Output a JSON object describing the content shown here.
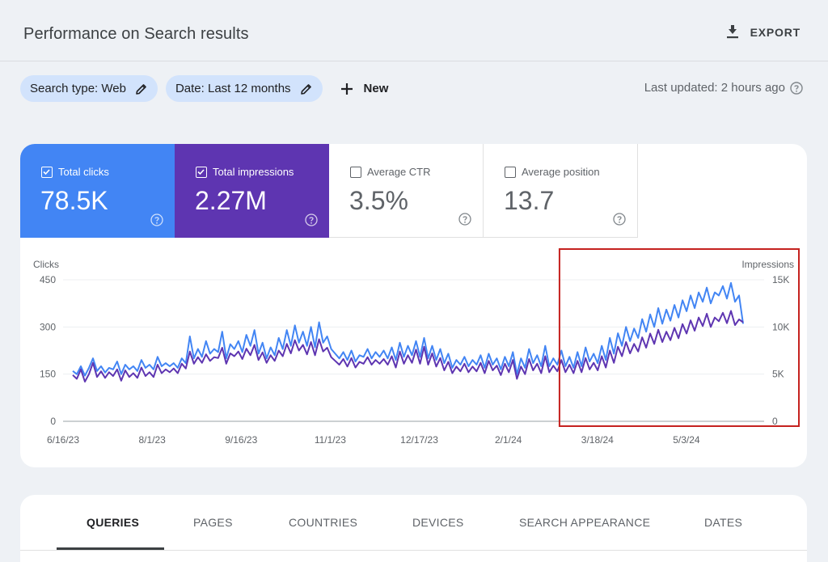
{
  "header": {
    "title": "Performance on Search results",
    "export_label": "EXPORT"
  },
  "filters": {
    "search_type": "Search type: Web",
    "date": "Date: Last 12 months",
    "new_label": "New",
    "last_updated": "Last updated: 2 hours ago"
  },
  "metrics": [
    {
      "label": "Total clicks",
      "value": "78.5K",
      "checked": true
    },
    {
      "label": "Total impressions",
      "value": "2.27M",
      "checked": true
    },
    {
      "label": "Average CTR",
      "value": "3.5%",
      "checked": false
    },
    {
      "label": "Average position",
      "value": "13.7",
      "checked": false
    }
  ],
  "colors": {
    "clicks": "#4285f4",
    "impressions": "#5e35b1",
    "highlight": "#c5221f"
  },
  "chart_data": {
    "type": "line",
    "left_axis_label": "Clicks",
    "right_axis_label": "Impressions",
    "left_ticks": [
      "450",
      "300",
      "150",
      "0"
    ],
    "right_ticks": [
      "15K",
      "10K",
      "5K",
      "0"
    ],
    "left_range": [
      0,
      450
    ],
    "right_range": [
      0,
      15000
    ],
    "x_tick_labels": [
      "6/16/23",
      "8/1/23",
      "9/16/23",
      "11/1/23",
      "12/17/23",
      "2/1/24",
      "3/18/24",
      "5/3/24"
    ],
    "x_range": [
      "2023-06-16",
      "2024-06-20"
    ],
    "series": [
      {
        "name": "Clicks",
        "axis": "left",
        "color": "#4285f4",
        "values": [
          160,
          150,
          175,
          145,
          170,
          200,
          160,
          175,
          155,
          170,
          165,
          190,
          150,
          180,
          165,
          175,
          160,
          195,
          170,
          180,
          165,
          205,
          175,
          185,
          175,
          185,
          170,
          200,
          185,
          270,
          200,
          230,
          205,
          255,
          215,
          230,
          220,
          285,
          200,
          245,
          230,
          255,
          220,
          275,
          240,
          290,
          215,
          250,
          200,
          235,
          210,
          265,
          230,
          290,
          240,
          305,
          250,
          285,
          240,
          300,
          235,
          315,
          250,
          270,
          230,
          215,
          200,
          220,
          195,
          225,
          190,
          210,
          205,
          230,
          200,
          220,
          205,
          225,
          200,
          235,
          195,
          250,
          205,
          240,
          210,
          255,
          205,
          265,
          200,
          240,
          195,
          230,
          185,
          215,
          170,
          195,
          180,
          205,
          175,
          195,
          180,
          210,
          170,
          215,
          180,
          200,
          165,
          205,
          175,
          220,
          150,
          200,
          170,
          230,
          185,
          210,
          175,
          240,
          175,
          200,
          180,
          225,
          175,
          205,
          170,
          220,
          175,
          235,
          190,
          215,
          185,
          240,
          195,
          265,
          215,
          280,
          240,
          300,
          255,
          295,
          265,
          325,
          285,
          340,
          300,
          360,
          310,
          355,
          320,
          370,
          330,
          385,
          350,
          400,
          360,
          410,
          380,
          425,
          375,
          410,
          400,
          430,
          390,
          440,
          380,
          400,
          310
        ]
      },
      {
        "name": "Impressions",
        "axis": "right",
        "color": "#5e35b1",
        "values": [
          4900,
          4500,
          5500,
          4200,
          5000,
          6200,
          4700,
          5300,
          4600,
          5200,
          4800,
          5500,
          4300,
          5400,
          4700,
          5100,
          4600,
          5700,
          4800,
          5200,
          4700,
          6000,
          5100,
          5500,
          5200,
          5600,
          5100,
          6100,
          5600,
          7400,
          6100,
          6800,
          6200,
          7100,
          6400,
          6800,
          6700,
          7800,
          6100,
          7200,
          6900,
          7400,
          6600,
          7700,
          7000,
          8100,
          6500,
          7300,
          6200,
          7000,
          6400,
          7500,
          6900,
          8200,
          7200,
          8600,
          7500,
          8100,
          7100,
          8400,
          7000,
          8700,
          7400,
          7800,
          6800,
          6400,
          6000,
          6600,
          5800,
          6700,
          5700,
          6300,
          6100,
          6800,
          6000,
          6500,
          6100,
          6600,
          6000,
          6900,
          5700,
          7400,
          6100,
          7000,
          6200,
          7600,
          6100,
          7900,
          6000,
          7200,
          5800,
          6700,
          5400,
          6300,
          5100,
          5800,
          5300,
          6100,
          5200,
          5800,
          5300,
          6200,
          5100,
          6400,
          5400,
          5900,
          4900,
          6100,
          5200,
          6500,
          4500,
          5800,
          5000,
          6600,
          5400,
          6100,
          5100,
          6900,
          5200,
          5900,
          5300,
          6500,
          5200,
          6000,
          5100,
          6400,
          5200,
          6700,
          5500,
          6200,
          5400,
          6900,
          5700,
          7500,
          6200,
          7900,
          6900,
          8400,
          7200,
          8200,
          7400,
          8900,
          7800,
          9300,
          8200,
          9700,
          8400,
          9500,
          8600,
          9900,
          8800,
          10300,
          9300,
          10700,
          9600,
          11000,
          10100,
          11400,
          10000,
          11000,
          10600,
          11500,
          10400,
          11700,
          10200,
          10800,
          10500
        ]
      }
    ],
    "highlight_start": "2024-03-04"
  },
  "tabs": [
    "QUERIES",
    "PAGES",
    "COUNTRIES",
    "DEVICES",
    "SEARCH APPEARANCE",
    "DATES"
  ]
}
